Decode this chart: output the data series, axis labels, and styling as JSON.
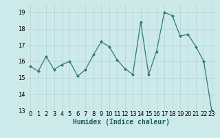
{
  "x": [
    0,
    1,
    2,
    3,
    4,
    5,
    6,
    7,
    8,
    9,
    10,
    11,
    12,
    13,
    14,
    15,
    16,
    17,
    18,
    19,
    20,
    21,
    22,
    23
  ],
  "y": [
    15.7,
    15.4,
    16.3,
    15.5,
    15.8,
    16.0,
    15.1,
    15.5,
    16.4,
    17.2,
    16.9,
    16.1,
    15.55,
    15.2,
    18.4,
    15.2,
    16.6,
    19.0,
    18.8,
    17.55,
    17.65,
    16.9,
    16.0,
    13.0
  ],
  "line_color": "#2e7d6e",
  "marker": "D",
  "marker_size": 2.0,
  "bg_color": "#cdeaea",
  "grid_major_color": "#b8d8d8",
  "grid_minor_color": "#cde4e4",
  "xlabel": "Humidex (Indice chaleur)",
  "xlabel_fontsize": 7,
  "tick_fontsize": 6,
  "ylim": [
    13,
    19.5
  ],
  "yticks": [
    13,
    14,
    15,
    16,
    17,
    18,
    19
  ],
  "xticks": [
    0,
    1,
    2,
    3,
    4,
    5,
    6,
    7,
    8,
    9,
    10,
    11,
    12,
    13,
    14,
    15,
    16,
    17,
    18,
    19,
    20,
    21,
    22,
    23
  ]
}
